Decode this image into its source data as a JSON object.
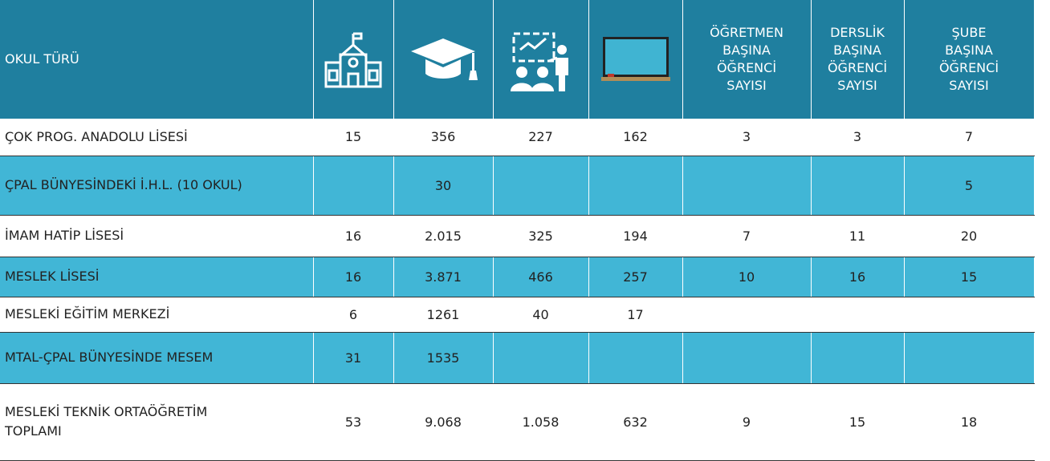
{
  "table": {
    "header": [
      "OKUL TÜRÜ",
      "ÖĞRETMEN\nBAŞINA\nÖĞRENCİ\nSAYISI",
      "DERSLİK\nBAŞINA\nÖĞRENCİ\nSAYISI",
      "ŞUBE\nBAŞINA\nÖĞRENCİ\nSAYISI"
    ],
    "rows": [
      [
        "ÇOK PROG. ANADOLU LİSESİ",
        "15",
        "356",
        "227",
        "162",
        "3",
        "3",
        "7"
      ],
      [
        "ÇPAL BÜNYESİNDEKİ İ.H.L. (10 OKUL)",
        null,
        "30",
        null,
        null,
        null,
        null,
        "5"
      ],
      [
        "İMAM HATİP LİSESİ",
        "16",
        "2.015",
        "325",
        "194",
        "7",
        "11",
        "20"
      ],
      [
        "MESLEK LİSESİ",
        "16",
        "3.871",
        "466",
        "257",
        "10",
        "16",
        "15"
      ],
      [
        "MESLEKİ EĞİTİM MERKEZİ",
        "6",
        "1261",
        "40",
        "17",
        null,
        null,
        null
      ],
      [
        "MTAL-ÇPAL BÜNYESİNDE MESEM",
        "31",
        "1535",
        null,
        null,
        null,
        null,
        null
      ],
      [
        "MESLEKİ TEKNİK ORTAÖĞRETİM\nTOPLAMI",
        "53",
        "9.068",
        "1.058",
        "632",
        "9",
        "15",
        "18"
      ]
    ]
  }
}
